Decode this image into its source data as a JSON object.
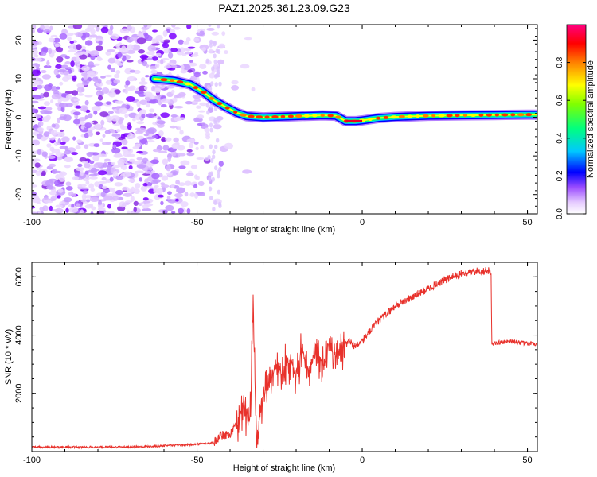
{
  "title": "PAZ1.2025.361.23.09.G23",
  "chart_data": [
    {
      "type": "heatmap",
      "xlabel": "Height of straight line (km)",
      "ylabel": "Frequency (Hz)",
      "xlim": [
        -100,
        53
      ],
      "ylim": [
        -25,
        24
      ],
      "xticks": [
        -100,
        -50,
        0,
        50
      ],
      "xtick_labels": [
        "-100",
        "-50",
        "0",
        "50"
      ],
      "yticks": [
        -20,
        -10,
        0,
        10,
        20
      ],
      "ytick_labels": [
        "-20",
        "-10",
        "0",
        "10",
        "20"
      ],
      "colorbar": {
        "label": "Normalized spectral amplitude",
        "range": [
          0,
          1
        ],
        "ticks": [
          0.0,
          0.2,
          0.4,
          0.6,
          0.8
        ],
        "tick_labels": [
          "0.0",
          "0.2",
          "0.4",
          "0.6",
          "0.8"
        ],
        "colormap": [
          "#ffffff",
          "#e6ccff",
          "#b480ff",
          "#8000ff",
          "#0000ff",
          "#00c8ff",
          "#00ff80",
          "#80ff00",
          "#ffff00",
          "#ff8000",
          "#ff0000",
          "#ff0080"
        ]
      },
      "signal_trace": {
        "x": [
          -63,
          -57,
          -52,
          -48,
          -45,
          -42,
          -38,
          -35,
          -30,
          -20,
          -12,
          -8,
          -5,
          -2,
          0,
          5,
          10,
          20,
          30,
          40,
          50,
          53
        ],
        "y": [
          10,
          9.5,
          8.5,
          6.5,
          4.5,
          3.0,
          1.2,
          0.3,
          0.0,
          0.3,
          0.5,
          0.4,
          -1.0,
          -1.0,
          -0.8,
          -0.2,
          0.1,
          0.4,
          0.5,
          0.6,
          0.7,
          0.7
        ]
      },
      "noise_region": {
        "x": [
          -100,
          -45
        ],
        "y": [
          -25,
          24
        ]
      }
    },
    {
      "type": "line",
      "xlabel": "Height of straight line (km)",
      "ylabel": "SNR (10 * v/v)",
      "xlim": [
        -100,
        53
      ],
      "ylim": [
        0,
        6500
      ],
      "xticks": [
        -100,
        -50,
        0,
        50
      ],
      "xtick_labels": [
        "-100",
        "-50",
        "0",
        "50"
      ],
      "yticks": [
        2000,
        4000,
        6000
      ],
      "ytick_labels": [
        "2000",
        "4000",
        "6000"
      ],
      "color": "#e8312b",
      "series": [
        {
          "name": "SNR",
          "x": [
            -100,
            -90,
            -80,
            -70,
            -60,
            -50,
            -45,
            -43,
            -40,
            -38,
            -36,
            -34,
            -33,
            -32,
            -31,
            -30,
            -28,
            -26,
            -24,
            -22,
            -20,
            -18,
            -16,
            -14,
            -12,
            -10,
            -8,
            -6,
            -4,
            -2,
            0,
            5,
            10,
            15,
            20,
            25,
            30,
            35,
            39,
            39.2,
            45,
            50,
            53
          ],
          "y": [
            150,
            150,
            150,
            160,
            200,
            250,
            300,
            550,
            600,
            900,
            1500,
            1000,
            4800,
            500,
            1200,
            2000,
            2500,
            3000,
            2600,
            3200,
            2800,
            3500,
            2700,
            3600,
            2900,
            3500,
            3400,
            3500,
            3800,
            3600,
            3800,
            4500,
            5000,
            5300,
            5600,
            5900,
            6100,
            6200,
            6200,
            3700,
            3800,
            3700,
            3700
          ]
        }
      ]
    }
  ]
}
